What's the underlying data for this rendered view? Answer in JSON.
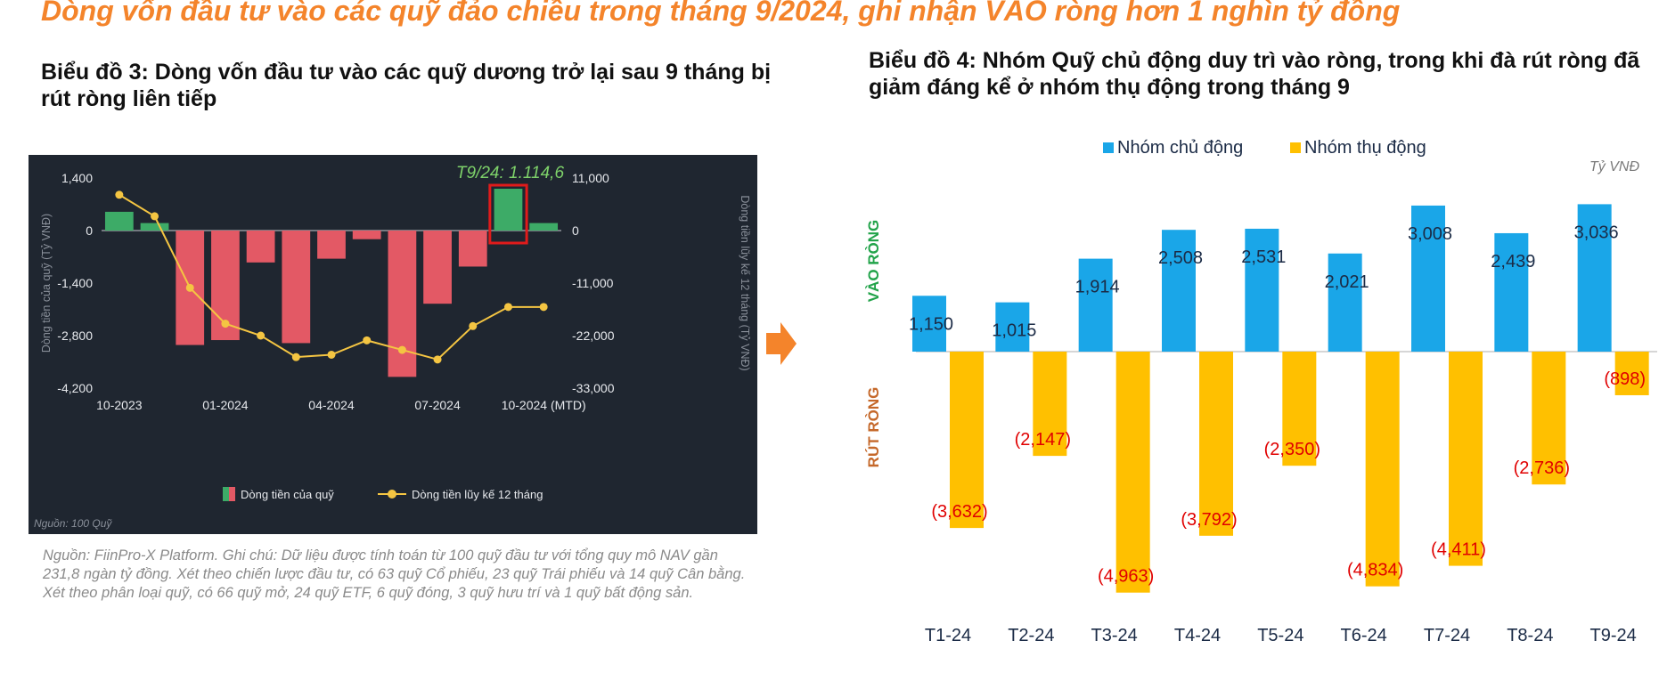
{
  "headline": "Dòng vốn đầu tư vào các quỹ đảo chiều trong tháng 9/2024, ghi nhận VÀO ròng hơn 1 nghìn tỷ đồng",
  "note": "Nguồn: FiinPro-X Platform. Ghi chú: Dữ liệu được tính toán từ 100 quỹ đầu tư với tổng quy mô NAV gần 231,8 ngàn tỷ đồng. Xét theo chiến lược đầu tư, có 63 quỹ Cổ phiếu, 23 quỹ Trái phiếu và 14 quỹ Cân bằng. Xét theo phân loại quỹ, có 66 quỹ mở, 24 quỹ ETF, 6 quỹ đóng, 3 quỹ hưu trí và 1 quỹ bất động sản.",
  "colors": {
    "headline": "#f4842b",
    "green": "#3dab67",
    "red": "#e35965",
    "line": "#f4c542",
    "blue": "#1aa6e8",
    "gold": "#ffc000",
    "neg_label": "#e00000",
    "vao": "#22a34a",
    "rut": "#c5682a"
  },
  "chart_data": [
    {
      "type": "bar",
      "title": "Biểu đồ 3: Dòng vốn đầu tư vào các quỹ dương trở lại sau 9 tháng bị rút ròng liên tiếp",
      "ylabel": "Dòng tiền của quỹ (Tỷ VNĐ)",
      "y2label": "Dòng tiền lũy kế 12 tháng (Tỷ VNĐ)",
      "ylim": [
        -4200,
        1400
      ],
      "y2lim": [
        -33000,
        11000
      ],
      "yticks": [
        "1,400",
        "0",
        "-1,400",
        "-2,800",
        "-4,200"
      ],
      "y2ticks": [
        "11,000",
        "0",
        "-11,000",
        "-22,000",
        "-33,000"
      ],
      "xticks": [
        "10-2023",
        "01-2024",
        "04-2024",
        "07-2024",
        "10-2024 (MTD)"
      ],
      "source_label": "Nguồn: 100 Quỹ",
      "annotation": "T9/24: 1.114,6",
      "highlight_index": 11,
      "series": [
        {
          "name": "Dòng tiền của quỹ",
          "type": "bar",
          "values": [
            500,
            200,
            -3050,
            -2920,
            -850,
            -3000,
            -750,
            -230,
            -3900,
            -1950,
            -960,
            1115,
            200
          ]
        },
        {
          "name": "Dòng tiền lũy kế 12 tháng",
          "type": "line",
          "values": [
            7500,
            3000,
            -12000,
            -19500,
            -22000,
            -26500,
            -26000,
            -23000,
            -25000,
            -27000,
            -20000,
            -16000,
            -16000
          ]
        }
      ],
      "grid": false,
      "legend": "bottom"
    },
    {
      "type": "bar",
      "title": "Biểu đồ 4: Nhóm Quỹ chủ động duy trì vào ròng, trong khi đà rút ròng đã giảm đáng kể ở nhóm thụ động trong tháng 9",
      "unit": "Tỷ VNĐ",
      "ylabel_top": "VÀO RÒNG",
      "ylabel_bottom": "RÚT RÒNG",
      "categories": [
        "T1-24",
        "T2-24",
        "T3-24",
        "T4-24",
        "T5-24",
        "T6-24",
        "T7-24",
        "T8-24",
        "T9-24"
      ],
      "ylim": [
        -5200,
        3300
      ],
      "series": [
        {
          "name": "Nhóm chủ động",
          "values": [
            1150,
            1015,
            1914,
            2508,
            2531,
            2021,
            3008,
            2439,
            3036
          ],
          "labels": [
            "1,150",
            "1,015",
            "1,914",
            "2,508",
            "2,531",
            "2,021",
            "3,008",
            "2,439",
            "3,036"
          ]
        },
        {
          "name": "Nhóm thụ động",
          "values": [
            -3632,
            -2147,
            -4963,
            -3792,
            -2350,
            -4834,
            -4411,
            -2736,
            -898
          ],
          "labels": [
            "(3,632)",
            "(2,147)",
            "(4,963)",
            "(3,792)",
            "(2,350)",
            "(4,834)",
            "(4,411)",
            "(2,736)",
            "(898)"
          ]
        }
      ],
      "grid": false,
      "legend": "top"
    }
  ]
}
